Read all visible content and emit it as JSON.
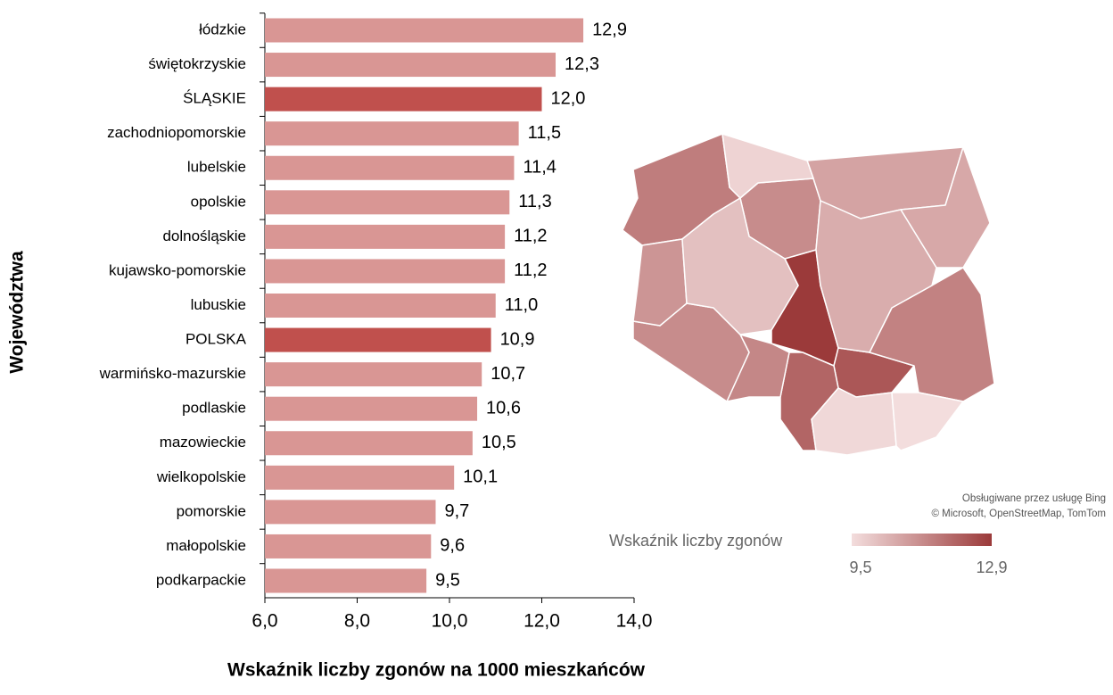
{
  "chart_data": {
    "type": "bar",
    "orientation": "horizontal",
    "x_label": "Wskaźnik liczby zgonów na 1000 mieszkańców",
    "y_label": "Województwa",
    "categories": [
      "łódzkie",
      "świętokrzyskie",
      "ŚLĄSKIE",
      "zachodniopomorskie",
      "lubelskie",
      "opolskie",
      "dolnośląskie",
      "kujawsko-pomorskie",
      "lubuskie",
      "POLSKA",
      "warmińsko-mazurskie",
      "podlaskie",
      "mazowieckie",
      "wielkopolskie",
      "pomorskie",
      "małopolskie",
      "podkarpackie"
    ],
    "values": [
      12.9,
      12.3,
      12.0,
      11.5,
      11.4,
      11.3,
      11.2,
      11.2,
      11.0,
      10.9,
      10.7,
      10.6,
      10.5,
      10.1,
      9.7,
      9.6,
      9.5
    ],
    "value_labels": [
      "12,9",
      "12,3",
      "12,0",
      "11,5",
      "11,4",
      "11,3",
      "11,2",
      "11,2",
      "11,0",
      "10,9",
      "10,7",
      "10,6",
      "10,5",
      "10,1",
      "9,7",
      "9,6",
      "9,5"
    ],
    "colors": [
      "#d99694",
      "#d99694",
      "#c0504d",
      "#d99694",
      "#d99694",
      "#d99694",
      "#d99694",
      "#d99694",
      "#d99694",
      "#c0504d",
      "#d99694",
      "#d99694",
      "#d99694",
      "#d99694",
      "#d99694",
      "#d99694",
      "#d99694"
    ],
    "xlim": [
      6,
      14
    ],
    "xticks": [
      {
        "value": 6,
        "label": "6,0"
      },
      {
        "value": 8,
        "label": "8,0"
      },
      {
        "value": 10,
        "label": "10,0"
      },
      {
        "value": 12,
        "label": "12,0"
      },
      {
        "value": 14,
        "label": "14,0"
      }
    ]
  },
  "map": {
    "legend_title": "Wskaźnik liczby zgonów",
    "legend_min": {
      "value": 9.5,
      "label": "9,5"
    },
    "legend_max": {
      "value": 12.9,
      "label": "12,9"
    },
    "color_scale": [
      "#f3dddd",
      "#9b3a3a"
    ],
    "credits": [
      "Obsługiwane przez usługę Bing",
      "© Microsoft, OpenStreetMap, TomTom"
    ]
  }
}
